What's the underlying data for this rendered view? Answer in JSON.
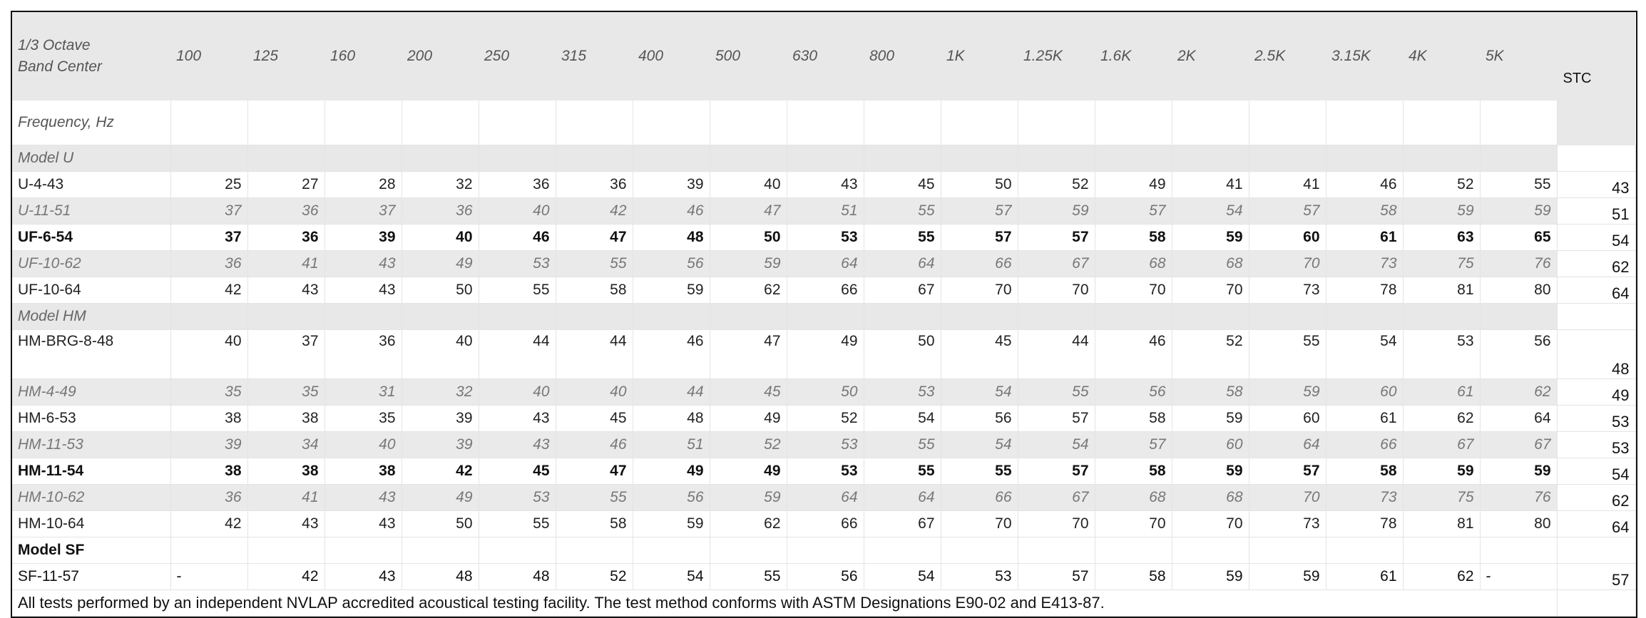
{
  "header": {
    "label": "1/3 Octave Band Center",
    "bands": [
      "100",
      "125",
      "160",
      "200",
      "250",
      "315",
      "400",
      "500",
      "630",
      "800",
      "1K",
      "1.25K",
      "1.6K",
      "2K",
      "2.5K",
      "3.15K",
      "4K",
      "5K"
    ],
    "stc": "STC"
  },
  "frequency_label": "Frequency, Hz",
  "groups": [
    {
      "name": "Model U",
      "rows": [
        {
          "model": "U-4-43",
          "values": [
            25,
            27,
            28,
            32,
            36,
            36,
            39,
            40,
            43,
            45,
            50,
            52,
            49,
            41,
            41,
            46,
            52,
            55
          ],
          "stc": 43
        },
        {
          "model": "U-11-51",
          "values": [
            37,
            36,
            37,
            36,
            40,
            42,
            46,
            47,
            51,
            55,
            57,
            59,
            57,
            54,
            57,
            58,
            59,
            59
          ],
          "stc": 51
        },
        {
          "model": "UF-6-54",
          "values": [
            37,
            36,
            39,
            40,
            46,
            47,
            48,
            50,
            53,
            55,
            57,
            57,
            58,
            59,
            60,
            61,
            63,
            65
          ],
          "stc": 54
        },
        {
          "model": "UF-10-62",
          "values": [
            36,
            41,
            43,
            49,
            53,
            55,
            56,
            59,
            64,
            64,
            66,
            67,
            68,
            68,
            70,
            73,
            75,
            76
          ],
          "stc": 62
        },
        {
          "model": "UF-10-64",
          "values": [
            42,
            43,
            43,
            50,
            55,
            58,
            59,
            62,
            66,
            67,
            70,
            70,
            70,
            70,
            73,
            78,
            81,
            80
          ],
          "stc": 64
        }
      ]
    },
    {
      "name": "Model HM",
      "rows": [
        {
          "model": "HM-BRG-8-48",
          "values": [
            40,
            37,
            36,
            40,
            44,
            44,
            46,
            47,
            49,
            50,
            45,
            44,
            46,
            52,
            55,
            54,
            53,
            56
          ],
          "stc": 48
        },
        {
          "model": "HM-4-49",
          "values": [
            35,
            35,
            31,
            32,
            40,
            40,
            44,
            45,
            50,
            53,
            54,
            55,
            56,
            58,
            59,
            60,
            61,
            62
          ],
          "stc": 49
        },
        {
          "model": "HM-6-53",
          "values": [
            38,
            38,
            35,
            39,
            43,
            45,
            48,
            49,
            52,
            54,
            56,
            57,
            58,
            59,
            60,
            61,
            62,
            64
          ],
          "stc": 53
        },
        {
          "model": "HM-11-53",
          "values": [
            39,
            34,
            40,
            39,
            43,
            46,
            51,
            52,
            53,
            55,
            54,
            54,
            57,
            60,
            64,
            66,
            67,
            67
          ],
          "stc": 53
        },
        {
          "model": "HM-11-54",
          "values": [
            38,
            38,
            38,
            42,
            45,
            47,
            49,
            49,
            53,
            55,
            55,
            57,
            58,
            59,
            57,
            58,
            59,
            59
          ],
          "stc": 54
        },
        {
          "model": "HM-10-62",
          "values": [
            36,
            41,
            43,
            49,
            53,
            55,
            56,
            59,
            64,
            64,
            66,
            67,
            68,
            68,
            70,
            73,
            75,
            76
          ],
          "stc": 62
        },
        {
          "model": "HM-10-64",
          "values": [
            42,
            43,
            43,
            50,
            55,
            58,
            59,
            62,
            66,
            67,
            70,
            70,
            70,
            70,
            73,
            78,
            81,
            80
          ],
          "stc": 64
        }
      ]
    },
    {
      "name": "Model SF",
      "rows": [
        {
          "model": "SF-11-57",
          "values": [
            "-",
            42,
            43,
            48,
            48,
            52,
            54,
            55,
            56,
            54,
            53,
            57,
            58,
            59,
            59,
            61,
            62,
            "-"
          ],
          "stc": 57
        }
      ]
    }
  ],
  "note": "All tests performed by an independent NVLAP accredited acoustical testing facility. The test method conforms with ASTM Designations E90-02 and E413-87."
}
